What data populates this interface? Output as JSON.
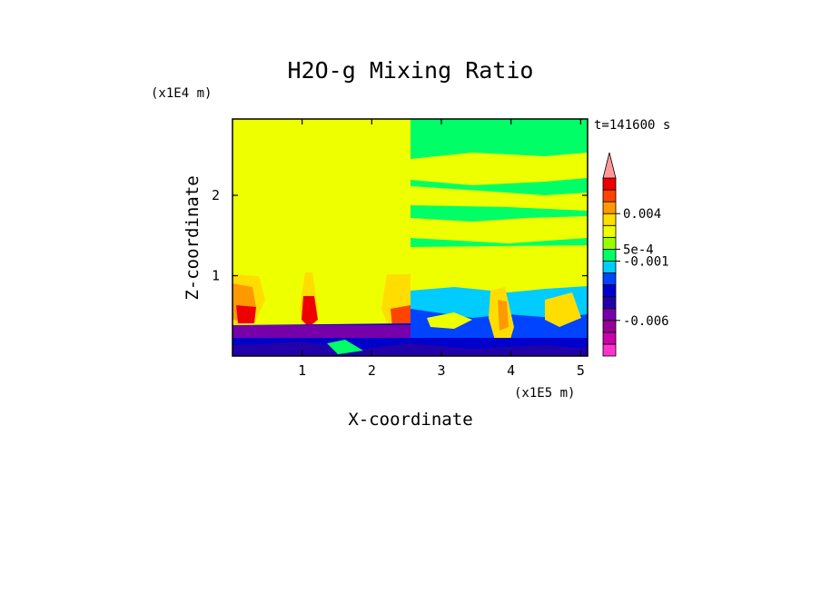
{
  "chart_data": {
    "type": "heatmap",
    "title": "H2O-g Mixing Ratio",
    "xlabel": "X-coordinate",
    "ylabel": "Z-coordinate",
    "x_scale_label": "(x1E5 m)",
    "y_scale_label": "(x1E4 m)",
    "time_label": "t=141600 s",
    "xlim": [
      0,
      5.1
    ],
    "ylim": [
      0,
      2.95
    ],
    "x_ticks": [
      "1",
      "2",
      "3",
      "4",
      "5"
    ],
    "y_ticks": [
      "1",
      "2"
    ],
    "colorbar": {
      "levels": 15,
      "colors": [
        "#ff33cc",
        "#cc00aa",
        "#990099",
        "#7700aa",
        "#2200aa",
        "#0000cc",
        "#0044ff",
        "#00ccff",
        "#00ff66",
        "#99ff00",
        "#eeff00",
        "#ffdd00",
        "#ff9900",
        "#ff4400",
        "#ee0000",
        "#ff6666",
        "#ff9999"
      ],
      "labels": [
        "0.004",
        "5e-4",
        "-0.001",
        "-0.006"
      ]
    }
  }
}
